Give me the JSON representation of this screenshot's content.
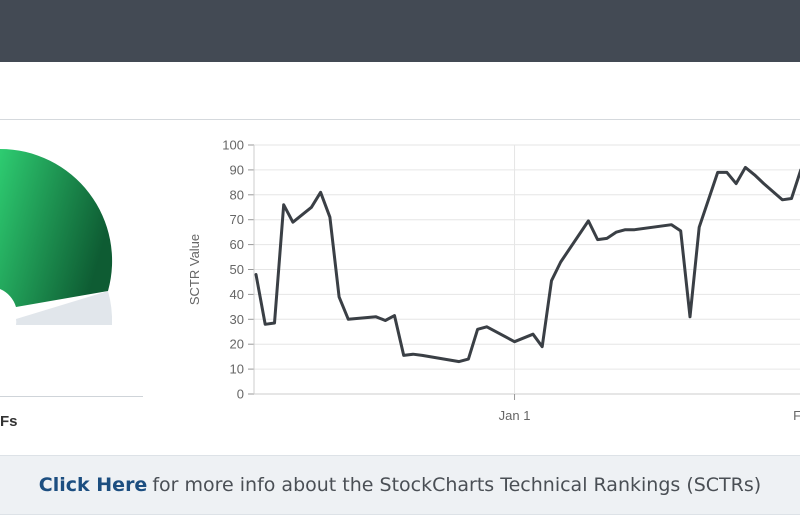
{
  "gauge": {
    "caption": "Fs",
    "colors": {
      "track": "#e1e6eb",
      "fill_start": "#2ecc71",
      "fill_end": "#0e5c33"
    }
  },
  "footer": {
    "link_text": "Click Here",
    "text": "for more info about the StockCharts Technical Rankings (SCTRs)"
  },
  "chart_data": {
    "type": "line",
    "ylabel": "SCTR Value",
    "ylim": [
      0,
      100
    ],
    "yticks": [
      0,
      10,
      20,
      30,
      40,
      50,
      60,
      70,
      80,
      90,
      100
    ],
    "xticks": [
      {
        "label": "Jan 1",
        "t": 28
      },
      {
        "label": "Fe",
        "t": 59
      }
    ],
    "grid": true,
    "line_color": "#3a3f45",
    "series": [
      {
        "x": [
          0,
          1,
          2,
          3,
          4,
          6,
          7,
          8,
          9,
          10,
          13,
          14,
          15,
          16,
          17,
          18,
          22,
          23,
          24,
          25,
          27,
          28,
          30,
          31,
          32,
          33,
          36,
          37,
          38,
          39,
          40,
          41,
          45,
          46,
          47,
          48,
          50,
          51,
          52,
          53,
          54,
          55,
          57,
          58,
          59
        ],
        "y": [
          48,
          28,
          28.5,
          76,
          69,
          75,
          81,
          71,
          39,
          30,
          31,
          29.5,
          31.5,
          15.5,
          16,
          15.5,
          13,
          14,
          26,
          27,
          23,
          21,
          24,
          19,
          45.5,
          53,
          69.5,
          62,
          62.5,
          65,
          66,
          66,
          68,
          65.5,
          31,
          67,
          89,
          89,
          84.5,
          91,
          88,
          84.5,
          78,
          78.5,
          90
        ]
      }
    ]
  }
}
